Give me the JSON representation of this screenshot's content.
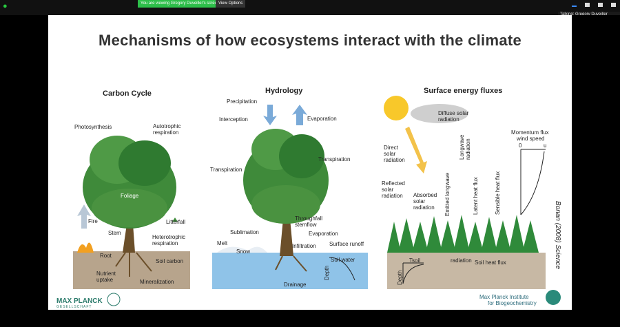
{
  "meeting": {
    "banner": "You are viewing Gregory Duveiller's screen",
    "view_options": "View Options",
    "talking": "Talking: Gregory Duveiller"
  },
  "slide": {
    "title": "Mechanisms of how ecosystems interact with the climate",
    "citation": "Bonan (2008) Science",
    "logo_left": "MAX PLANCK",
    "logo_left_sub": "GESELLSCHAFT",
    "logo_right_1": "Max Planck Institute",
    "logo_right_2": "for Biogeochemistry",
    "panels": {
      "carbon": {
        "title": "Carbon Cycle",
        "labels": [
          "Photosynthesis",
          "Autotrophic",
          "respiration",
          "Foliage",
          "Fire",
          "Litterfall",
          "Stem",
          "Heterotrophic",
          "respiration",
          "Root",
          "Soil carbon",
          "Nutrient",
          "uptake",
          "Mineralization"
        ]
      },
      "hydrology": {
        "title": "Hydrology",
        "labels": [
          "Precipitation",
          "Interception",
          "Evaporation",
          "Transpiration",
          "Transpiration",
          "Throughfall",
          "stemflow",
          "Sublimation",
          "Evaporation",
          "Melt",
          "Snow",
          "Infiltration",
          "Surface runoff",
          "Soil water",
          "Depth",
          "Drainage"
        ]
      },
      "energy": {
        "title": "Surface energy fluxes",
        "labels": [
          "Diffuse solar",
          "radiation",
          "Momentum flux",
          "wind speed",
          "0",
          "u",
          "Direct",
          "solar",
          "radiation",
          "Longwave",
          "radiation",
          "Reflected",
          "solar",
          "radiation",
          "Absorbed",
          "solar",
          "radiation",
          "Emitted longwave",
          "radiation",
          "Latent heat flux",
          "Sensible heat flux",
          "Tsoil",
          "Depth",
          "Soil heat flux"
        ]
      }
    }
  },
  "colors": {
    "banner": "#2dbf4a",
    "slide_bg": "#ffffff",
    "tree": "#3f8a3a",
    "water": "#8fc3e8",
    "soil": "#b7a48c"
  }
}
